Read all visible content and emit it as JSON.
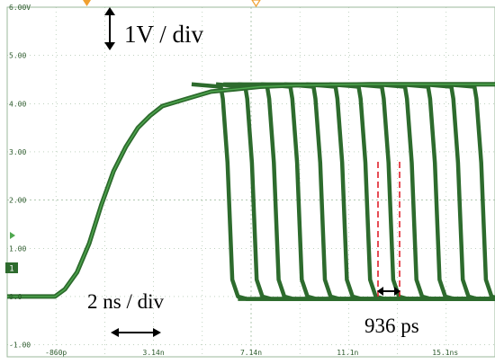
{
  "scope": {
    "colors": {
      "background": "#ffffff",
      "grid": "#9bb89b",
      "waveform": "#2d6b2d",
      "waveform_highlight": "#4fa84f",
      "marker_orange": "#f0a030",
      "measure_line": "#e0202a",
      "annotation": "#000000"
    },
    "y_labels": [
      "6.00V",
      "5.00",
      "4.00",
      "3.00",
      "2.00",
      "1.00",
      "0.0",
      "-1.00"
    ],
    "x_labels": [
      "-860p",
      "3.14n",
      "7.14n",
      "11.1n",
      "15.1ns"
    ],
    "volt_div_label": "1V / div",
    "time_div_label": "2 ns / div",
    "measure_label": "936 ps",
    "ground_marker_label": "1"
  },
  "chart_data": {
    "type": "line",
    "title": "",
    "xlabel": "",
    "ylabel": "",
    "x_unit": "ns",
    "y_unit": "V",
    "ylim": [
      -1.25,
      6.0
    ],
    "xlim": [
      -2.86,
      17.14
    ],
    "xticks": [
      -0.86,
      3.14,
      7.14,
      11.1,
      15.1
    ],
    "yticks": [
      6,
      5,
      4,
      3,
      2,
      1,
      0,
      -1
    ],
    "grid": true,
    "rising_edge": {
      "x": [
        -2.86,
        -0.9,
        -0.5,
        0.0,
        0.5,
        1.0,
        1.5,
        2.0,
        2.5,
        3.0,
        3.5,
        4.5,
        5.5,
        6.5,
        7.5,
        9.0,
        12.0,
        17.14
      ],
      "y": [
        0.0,
        0.0,
        0.15,
        0.5,
        1.1,
        1.9,
        2.6,
        3.1,
        3.5,
        3.75,
        3.95,
        4.1,
        4.25,
        4.3,
        4.35,
        4.38,
        4.4,
        4.4
      ]
    },
    "falling_edge_starts": [
      5.9,
      6.9,
      7.8,
      8.75,
      9.7,
      10.6,
      11.55,
      12.5,
      13.45,
      14.4,
      15.35,
      16.3
    ],
    "high_level": 4.4,
    "low_level": -0.05,
    "annotations": {
      "volt_per_div": "1V / div",
      "time_per_div": "2 ns / div",
      "spacing": "936 ps"
    }
  }
}
